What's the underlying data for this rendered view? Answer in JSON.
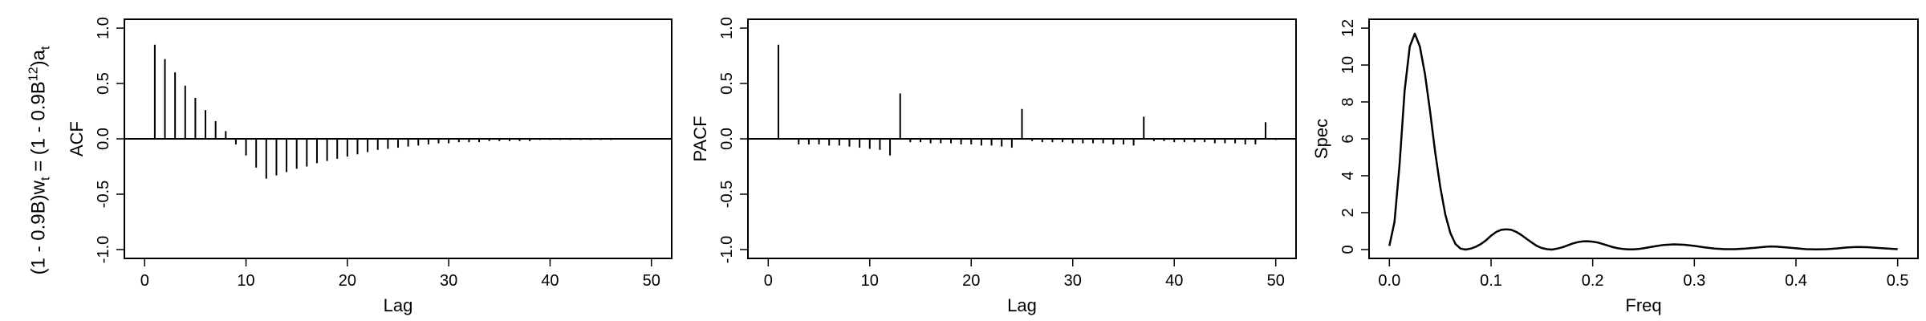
{
  "row_label": {
    "part1": "(1 - 0.9B)w",
    "sub1": "t",
    "part2": " = (1 - 0.9B",
    "sup": "12",
    "part3": ")a",
    "sub2": "t"
  },
  "chart_data": [
    {
      "type": "bar",
      "name": "acf",
      "xlabel": "Lag",
      "ylabel": "ACF",
      "xlim": [
        0,
        50
      ],
      "ylim": [
        -1.0,
        1.0
      ],
      "xticks": [
        0,
        10,
        20,
        30,
        40,
        50
      ],
      "yticks": [
        -1.0,
        -0.5,
        0.0,
        0.5,
        1.0
      ],
      "ytick_labels": [
        "-1.0",
        "-0.5",
        "0.0",
        "0.5",
        "1.0"
      ],
      "baseline": 0,
      "grid": false,
      "x": [
        1,
        2,
        3,
        4,
        5,
        6,
        7,
        8,
        9,
        10,
        11,
        12,
        13,
        14,
        15,
        16,
        17,
        18,
        19,
        20,
        21,
        22,
        23,
        24,
        25,
        26,
        27,
        28,
        29,
        30,
        31,
        32,
        33,
        34,
        35,
        36,
        37,
        38,
        39,
        40,
        41,
        42,
        43,
        44,
        45,
        46,
        47,
        48,
        49,
        50
      ],
      "values": [
        0.85,
        0.72,
        0.6,
        0.48,
        0.37,
        0.26,
        0.16,
        0.07,
        -0.05,
        -0.15,
        -0.26,
        -0.36,
        -0.33,
        -0.3,
        -0.27,
        -0.25,
        -0.22,
        -0.2,
        -0.18,
        -0.16,
        -0.14,
        -0.12,
        -0.1,
        -0.09,
        -0.08,
        -0.07,
        -0.06,
        -0.05,
        -0.04,
        -0.04,
        -0.03,
        -0.03,
        -0.03,
        -0.02,
        -0.02,
        -0.02,
        -0.02,
        -0.02,
        -0.01,
        -0.01,
        -0.01,
        -0.01,
        -0.01,
        -0.01,
        -0.01,
        -0.01,
        -0.005,
        -0.005,
        -0.005,
        -0.005
      ]
    },
    {
      "type": "bar",
      "name": "pacf",
      "xlabel": "Lag",
      "ylabel": "PACF",
      "xlim": [
        0,
        50
      ],
      "ylim": [
        -1.0,
        1.0
      ],
      "xticks": [
        0,
        10,
        20,
        30,
        40,
        50
      ],
      "yticks": [
        -1.0,
        -0.5,
        0.0,
        0.5,
        1.0
      ],
      "ytick_labels": [
        "-1.0",
        "-0.5",
        "0.0",
        "0.5",
        "1.0"
      ],
      "baseline": 0,
      "grid": false,
      "x": [
        1,
        2,
        3,
        4,
        5,
        6,
        7,
        8,
        9,
        10,
        11,
        12,
        13,
        14,
        15,
        16,
        17,
        18,
        19,
        20,
        21,
        22,
        23,
        24,
        25,
        26,
        27,
        28,
        29,
        30,
        31,
        32,
        33,
        34,
        35,
        36,
        37,
        38,
        39,
        40,
        41,
        42,
        43,
        44,
        45,
        46,
        47,
        48,
        49,
        50
      ],
      "values": [
        0.85,
        0.0,
        -0.05,
        -0.05,
        -0.05,
        -0.06,
        -0.06,
        -0.07,
        -0.08,
        -0.09,
        -0.1,
        -0.15,
        0.41,
        -0.03,
        -0.03,
        -0.04,
        -0.04,
        -0.04,
        -0.05,
        -0.05,
        -0.06,
        -0.06,
        -0.07,
        -0.08,
        0.27,
        -0.02,
        -0.03,
        -0.03,
        -0.03,
        -0.04,
        -0.04,
        -0.04,
        -0.04,
        -0.05,
        -0.05,
        -0.06,
        0.2,
        -0.02,
        -0.02,
        -0.03,
        -0.03,
        -0.03,
        -0.03,
        -0.04,
        -0.04,
        -0.04,
        -0.05,
        -0.05,
        0.15,
        -0.01
      ]
    },
    {
      "type": "line",
      "name": "spectrum",
      "xlabel": "Freq",
      "ylabel": "Spec",
      "xlim": [
        0,
        0.5
      ],
      "ylim": [
        0,
        12
      ],
      "xticks": [
        0.0,
        0.1,
        0.2,
        0.3,
        0.4,
        0.5
      ],
      "xtick_labels": [
        "0.0",
        "0.1",
        "0.2",
        "0.3",
        "0.4",
        "0.5"
      ],
      "yticks": [
        0,
        2,
        4,
        6,
        8,
        10,
        12
      ],
      "ytick_labels": [
        "0",
        "2",
        "4",
        "6",
        "8",
        "10",
        "12"
      ],
      "grid": false,
      "x": [
        0.0,
        0.005,
        0.01,
        0.015,
        0.02,
        0.025,
        0.03,
        0.035,
        0.04,
        0.045,
        0.05,
        0.055,
        0.06,
        0.065,
        0.07,
        0.075,
        0.08,
        0.085,
        0.09,
        0.095,
        0.1,
        0.105,
        0.11,
        0.115,
        0.12,
        0.125,
        0.13,
        0.135,
        0.14,
        0.145,
        0.15,
        0.155,
        0.16,
        0.165,
        0.17,
        0.175,
        0.18,
        0.185,
        0.19,
        0.195,
        0.2,
        0.205,
        0.21,
        0.215,
        0.22,
        0.225,
        0.23,
        0.235,
        0.24,
        0.245,
        0.25,
        0.26,
        0.27,
        0.28,
        0.29,
        0.3,
        0.31,
        0.32,
        0.33,
        0.34,
        0.35,
        0.36,
        0.37,
        0.375,
        0.38,
        0.39,
        0.4,
        0.41,
        0.42,
        0.43,
        0.44,
        0.45,
        0.46,
        0.47,
        0.48,
        0.49,
        0.5
      ],
      "values": [
        0.2,
        1.5,
        4.6,
        8.6,
        11.0,
        11.7,
        11.0,
        9.5,
        7.5,
        5.3,
        3.4,
        1.9,
        0.9,
        0.3,
        0.05,
        0.0,
        0.05,
        0.15,
        0.3,
        0.5,
        0.75,
        0.95,
        1.07,
        1.1,
        1.07,
        0.95,
        0.78,
        0.58,
        0.38,
        0.2,
        0.08,
        0.02,
        0.0,
        0.05,
        0.12,
        0.22,
        0.32,
        0.4,
        0.44,
        0.45,
        0.43,
        0.38,
        0.3,
        0.21,
        0.13,
        0.07,
        0.03,
        0.01,
        0.01,
        0.03,
        0.07,
        0.17,
        0.25,
        0.28,
        0.26,
        0.2,
        0.12,
        0.05,
        0.02,
        0.02,
        0.05,
        0.1,
        0.15,
        0.17,
        0.16,
        0.12,
        0.07,
        0.02,
        0.01,
        0.02,
        0.06,
        0.11,
        0.14,
        0.13,
        0.09,
        0.05,
        0.02
      ]
    }
  ]
}
